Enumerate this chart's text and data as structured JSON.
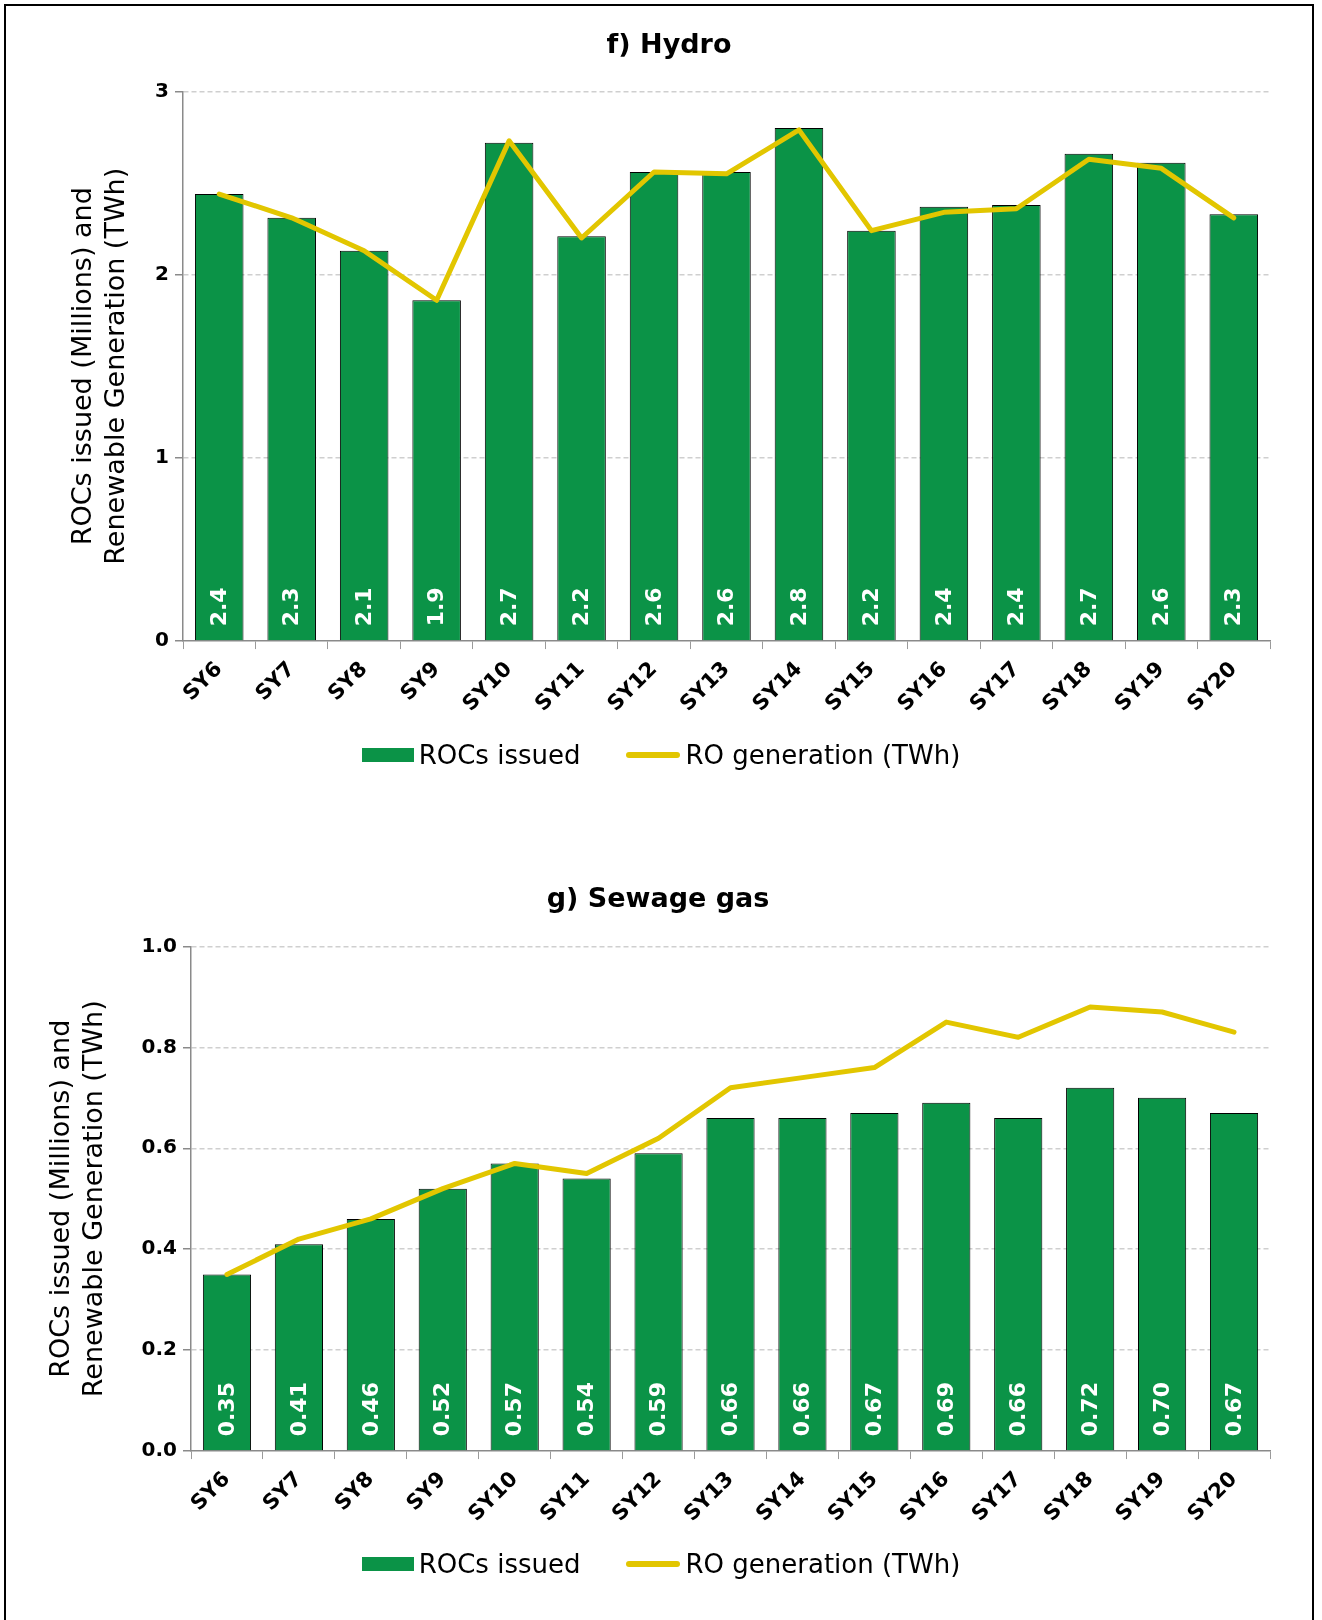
{
  "chart_data": [
    {
      "type": "bar",
      "title": "f) Hydro",
      "ylabel": "ROCs issued (Millions) and Renewable Generation (TWh)",
      "categories": [
        "SY6",
        "SY7",
        "SY8",
        "SY9",
        "SY10",
        "SY11",
        "SY12",
        "SY13",
        "SY14",
        "SY15",
        "SY16",
        "SY17",
        "SY18",
        "SY19",
        "SY20"
      ],
      "series": [
        {
          "name": "ROCs issued",
          "color": "#0b9347",
          "values": [
            2.44,
            2.31,
            2.13,
            1.86,
            2.72,
            2.21,
            2.56,
            2.56,
            2.8,
            2.24,
            2.37,
            2.38,
            2.66,
            2.61,
            2.33
          ],
          "value_labels": [
            "2.4",
            "2.3",
            "2.1",
            "1.9",
            "2.7",
            "2.2",
            "2.6",
            "2.6",
            "2.8",
            "2.2",
            "2.4",
            "2.4",
            "2.7",
            "2.6",
            "2.3"
          ]
        },
        {
          "name": "RO generation (TWh)",
          "type": "line",
          "color": "#e2c600",
          "values": [
            2.44,
            2.31,
            2.13,
            1.86,
            2.73,
            2.2,
            2.56,
            2.55,
            2.79,
            2.24,
            2.34,
            2.36,
            2.63,
            2.58,
            2.31
          ]
        }
      ],
      "ylim": [
        0,
        3
      ],
      "yticks": [
        0,
        1,
        2,
        3
      ],
      "grid": "y",
      "legend": "bottom",
      "marker": "none",
      "line_style": "solid"
    },
    {
      "type": "bar",
      "title": "g) Sewage gas",
      "ylabel": "ROCs issued (Millions) and Renewable Generation (TWh)",
      "categories": [
        "SY6",
        "SY7",
        "SY8",
        "SY9",
        "SY10",
        "SY11",
        "SY12",
        "SY13",
        "SY14",
        "SY15",
        "SY16",
        "SY17",
        "SY18",
        "SY19",
        "SY20"
      ],
      "series": [
        {
          "name": "ROCs issued",
          "color": "#0b9347",
          "values": [
            0.35,
            0.41,
            0.46,
            0.52,
            0.57,
            0.54,
            0.59,
            0.66,
            0.66,
            0.67,
            0.69,
            0.66,
            0.72,
            0.7,
            0.67
          ],
          "value_labels": [
            "0.35",
            "0.41",
            "0.46",
            "0.52",
            "0.57",
            "0.54",
            "0.59",
            "0.66",
            "0.66",
            "0.67",
            "0.69",
            "0.66",
            "0.72",
            "0.70",
            "0.67"
          ]
        },
        {
          "name": "RO generation (TWh)",
          "type": "line",
          "color": "#e2c600",
          "values": [
            0.35,
            0.42,
            0.46,
            0.52,
            0.57,
            0.55,
            0.62,
            0.72,
            0.74,
            0.76,
            0.85,
            0.82,
            0.88,
            0.87,
            0.83
          ]
        }
      ],
      "ylim": [
        0,
        1
      ],
      "yticks": [
        {
          "value": 0,
          "label": "0.0"
        },
        0.2,
        0.4,
        0.6,
        0.8,
        {
          "value": 1,
          "label": "1.0"
        }
      ],
      "grid": "y",
      "legend": "bottom",
      "marker": "none",
      "line_style": "solid"
    }
  ]
}
